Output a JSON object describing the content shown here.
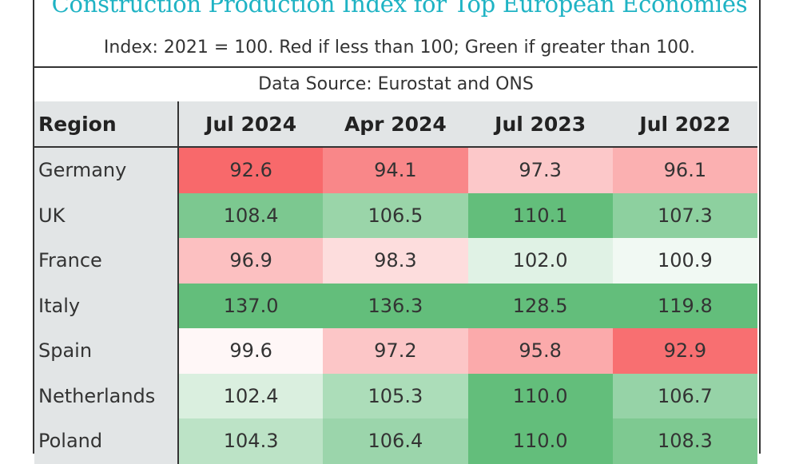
{
  "title": "Construction Production Index for Top European Economies",
  "subtitle": "Index: 2021 = 100. Red if less than 100; Green if greater than 100.",
  "source": "Data Source: Eurostat and ONS",
  "colors": {
    "low": "#f8696b",
    "mid": "#ffffff",
    "high": "#63be7b",
    "title": "#1fb3c4",
    "header_bg": "#e2e5e6"
  },
  "chart_data": {
    "type": "heatmap",
    "title": "Construction Production Index for Top European Economies",
    "row_header": "Region",
    "columns": [
      "Jul 2024",
      "Apr 2024",
      "Jul 2023",
      "Jul 2022"
    ],
    "rows": [
      {
        "region": "Germany",
        "values": [
          "92.6",
          "94.1",
          "97.3",
          "96.1"
        ]
      },
      {
        "region": "UK",
        "values": [
          "108.4",
          "106.5",
          "110.1",
          "107.3"
        ]
      },
      {
        "region": "France",
        "values": [
          "96.9",
          "98.3",
          "102.0",
          "100.9"
        ]
      },
      {
        "region": "Italy",
        "values": [
          "137.0",
          "136.3",
          "128.5",
          "119.8"
        ]
      },
      {
        "region": "Spain",
        "values": [
          "99.6",
          "97.2",
          "95.8",
          "92.9"
        ]
      },
      {
        "region": "Netherlands",
        "values": [
          "102.4",
          "105.3",
          "110.0",
          "106.7"
        ]
      },
      {
        "region": "Poland",
        "values": [
          "104.3",
          "106.4",
          "110.0",
          "108.3"
        ]
      }
    ],
    "color_midpoint": 100
  }
}
